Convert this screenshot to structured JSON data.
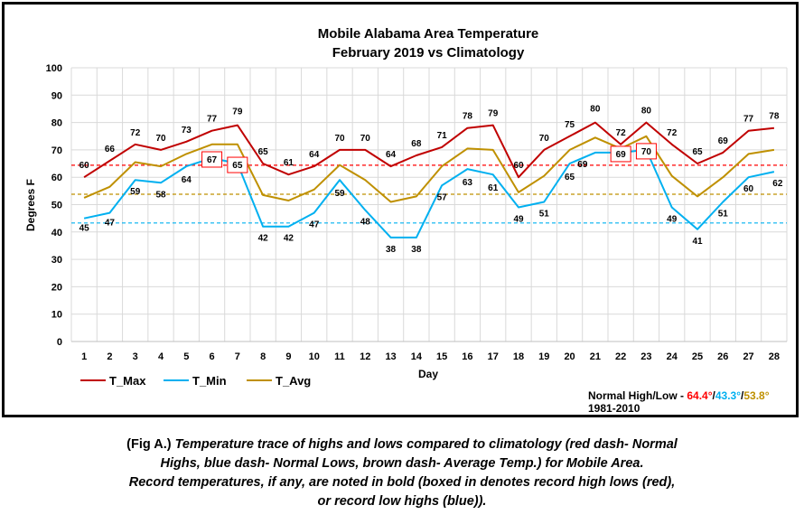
{
  "colors": {
    "t_max": "#c00000",
    "t_min": "#00b0f0",
    "t_avg": "#bf9000",
    "normal_high": "#ff0000",
    "normal_low": "#00b0f0",
    "normal_avg": "#bf9000",
    "record_box": "#ff0000",
    "record_text_blue": "#0000ff",
    "record_text_red": "#ff0000"
  },
  "chart_data": {
    "type": "line",
    "title": [
      "Mobile Alabama Area Temperature",
      "February 2019 vs Climatology"
    ],
    "xlabel": "Day",
    "ylabel": "Degrees F",
    "ylim": [
      0,
      100
    ],
    "yticks": [
      0,
      10,
      20,
      30,
      40,
      50,
      60,
      70,
      80,
      90,
      100
    ],
    "x": [
      1,
      2,
      3,
      4,
      5,
      6,
      7,
      8,
      9,
      10,
      11,
      12,
      13,
      14,
      15,
      16,
      17,
      18,
      19,
      20,
      21,
      22,
      23,
      24,
      25,
      26,
      27,
      28
    ],
    "grid": true,
    "legend": "bottom-left",
    "series": [
      {
        "name": "T_Max",
        "color": "#c00000",
        "values": [
          60,
          66,
          72,
          70,
          73,
          77,
          79,
          65,
          61,
          64,
          70,
          70,
          64,
          68,
          71,
          78,
          79,
          60,
          70,
          75,
          80,
          72,
          80,
          72,
          65,
          69,
          77,
          78
        ]
      },
      {
        "name": "T_Min",
        "color": "#00b0f0",
        "values": [
          45,
          47,
          59,
          58,
          64,
          67,
          65,
          42,
          42,
          47,
          59,
          48,
          38,
          38,
          57,
          63,
          61,
          49,
          51,
          65,
          69,
          69,
          70,
          49,
          41,
          51,
          60,
          62
        ]
      },
      {
        "name": "T_Avg",
        "color": "#bf9000",
        "values": [
          52.5,
          56.5,
          65.5,
          64,
          68.5,
          72,
          72,
          53.5,
          51.5,
          55.5,
          64.5,
          59,
          51,
          53,
          64,
          70.5,
          70,
          54.5,
          60.5,
          70,
          74.5,
          70.5,
          75,
          60.5,
          53,
          60,
          68.5,
          70
        ]
      }
    ],
    "normals": {
      "high": 64.4,
      "low": 43.3,
      "avg": 53.8
    },
    "record_highs": [
      7,
      21
    ],
    "record_low_highs": [
      6,
      7,
      22,
      23
    ]
  },
  "normals_label": {
    "prefix": "Normal High/Low - ",
    "high": "64.4°",
    "sep1": "/",
    "low": "43.3°",
    "sep2": "/",
    "avg": "53.8°",
    "period": "1981-2010"
  },
  "caption": {
    "lead": "(Fig A.)",
    "line1": " Temperature trace of highs and lows compared to climatology (red dash- Normal",
    "line2": "Highs, blue dash- Normal Lows, brown dash- Average Temp.) for Mobile Area.",
    "line3": "Record temperatures, if any, are noted in bold (boxed in denotes record high lows (red),",
    "line4": "or record low highs (blue))."
  }
}
